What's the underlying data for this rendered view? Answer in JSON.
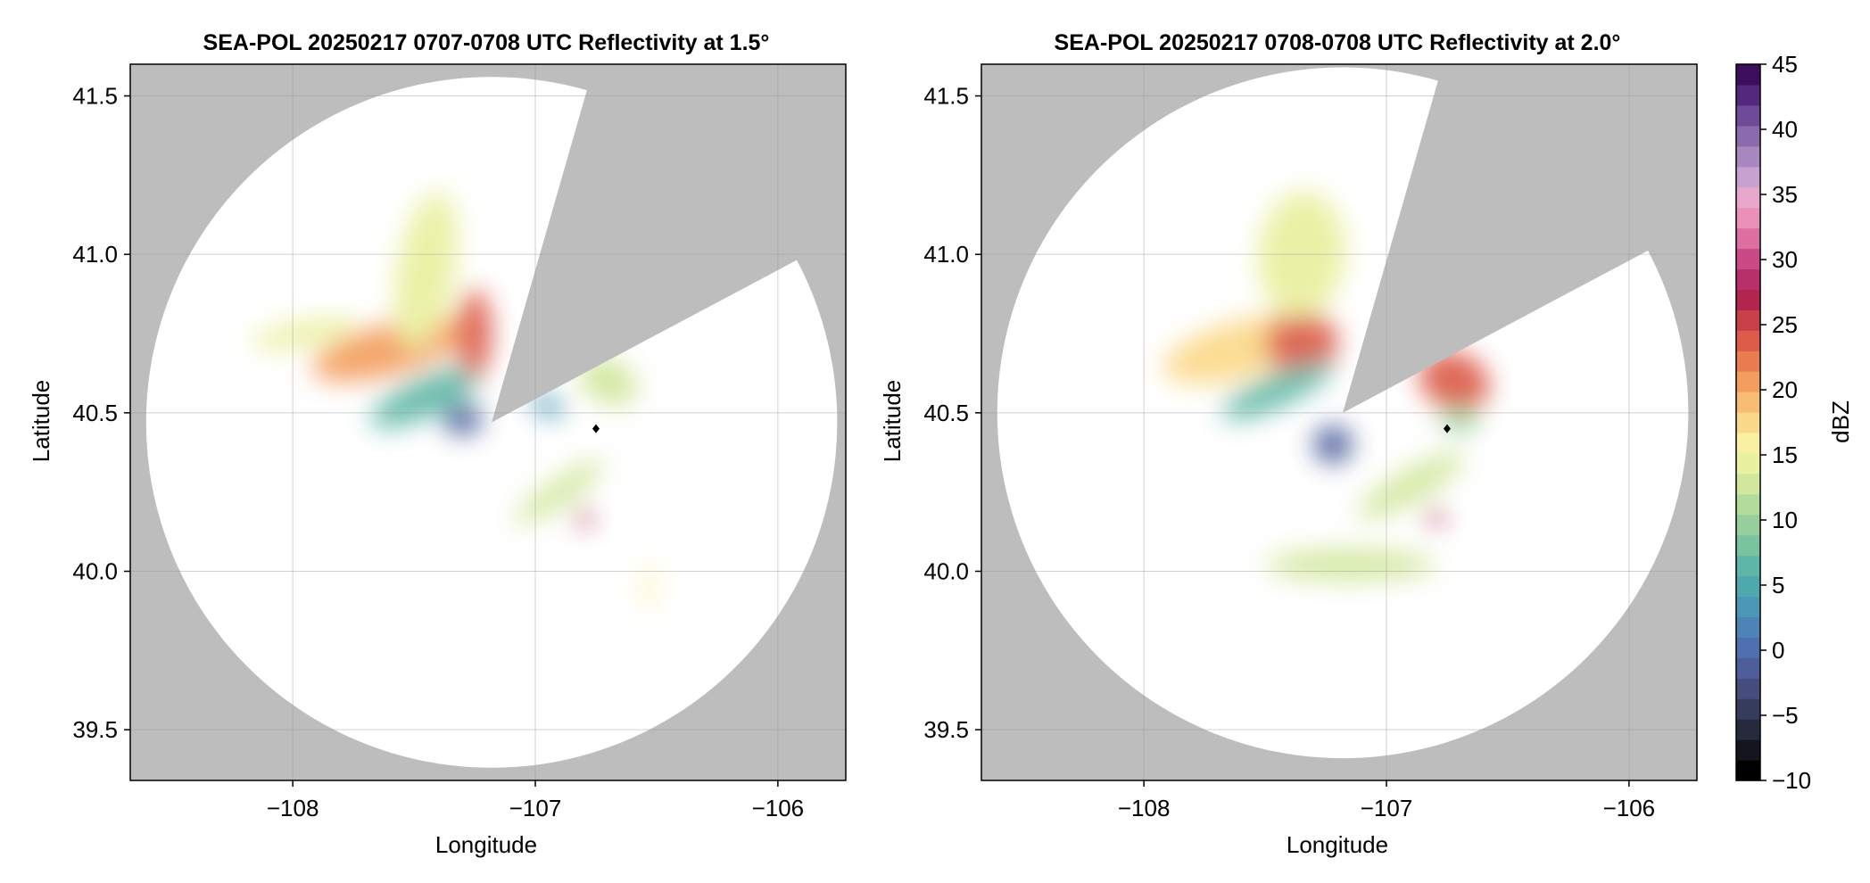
{
  "colors": {
    "background_mask": "#bdbdbd",
    "coverage_fill": "#ffffff",
    "grid": "#9a9a9a",
    "marker": "#000000"
  },
  "colorbar": {
    "label": "dBZ",
    "range": [
      -10,
      45
    ],
    "ticks": [
      45,
      40,
      35,
      30,
      25,
      20,
      15,
      10,
      5,
      0,
      -5,
      -10
    ],
    "tick_labels": [
      "45",
      "40",
      "35",
      "30",
      "25",
      "20",
      "15",
      "10",
      "5",
      "0",
      "−5",
      "−10"
    ],
    "colormap": [
      "#000000",
      "#151520",
      "#262a3d",
      "#363d5c",
      "#444d7c",
      "#4e5e9a",
      "#4f6fb0",
      "#4e83b8",
      "#4a97b6",
      "#4fa8ad",
      "#5eb7a6",
      "#79c39e",
      "#97cf9c",
      "#b3dc9b",
      "#d0e79d",
      "#e9f09f",
      "#f9f0a3",
      "#fbd98a",
      "#f8bd72",
      "#f39e5f",
      "#e97d51",
      "#dc5c4a",
      "#c9404a",
      "#b3254f",
      "#b7306a",
      "#c94a84",
      "#dd6fa0",
      "#eb90b7",
      "#e8a8cc",
      "#c7a1cf",
      "#a987c0",
      "#8c6aae",
      "#6f4a98",
      "#54287d",
      "#3c0f5e"
    ]
  },
  "chart_data": [
    {
      "type": "heatmap",
      "title": "SEA-POL 20250217 0707-0708 UTC Reflectivity at 1.5°",
      "xlabel": "Longitude",
      "ylabel": "Latitude",
      "xlim": [
        -108.67,
        -105.72
      ],
      "ylim": [
        39.34,
        41.6
      ],
      "xticks": [
        -108,
        -107,
        -106
      ],
      "xtick_labels": [
        "−108",
        "−107",
        "−106"
      ],
      "yticks": [
        39.5,
        40.0,
        40.5,
        41.0,
        41.5
      ],
      "ytick_labels": [
        "39.5",
        "40.0",
        "40.5",
        "41.0",
        "41.5"
      ],
      "grid": true,
      "radar_center": {
        "lon": -107.18,
        "lat": 40.47
      },
      "coverage_radius_deg_lat": 1.09,
      "blocked_sectors_deg": [
        [
          16,
          62
        ]
      ],
      "marker": {
        "lon": -106.75,
        "lat": 40.45,
        "shape": "diamond"
      },
      "echo_regions": [
        {
          "lon": -107.6,
          "lat": 40.7,
          "slon": 0.33,
          "slat": 0.08,
          "dbz": 20,
          "angle": -15
        },
        {
          "lon": -107.45,
          "lat": 40.55,
          "slon": 0.25,
          "slat": 0.06,
          "dbz": 6,
          "angle": -25
        },
        {
          "lon": -107.45,
          "lat": 40.95,
          "slon": 0.12,
          "slat": 0.25,
          "dbz": 15,
          "angle": 10
        },
        {
          "lon": -107.25,
          "lat": 40.75,
          "slon": 0.07,
          "slat": 0.14,
          "dbz": 24,
          "angle": 0
        },
        {
          "lon": -107.95,
          "lat": 40.75,
          "slon": 0.22,
          "slat": 0.04,
          "dbz": 14,
          "angle": -10
        },
        {
          "lon": -107.3,
          "lat": 40.48,
          "slon": 0.08,
          "slat": 0.05,
          "dbz": -2,
          "angle": 0
        },
        {
          "lon": -106.9,
          "lat": 40.25,
          "slon": 0.22,
          "slat": 0.04,
          "dbz": 12,
          "angle": -35
        },
        {
          "lon": -106.8,
          "lat": 40.17,
          "slon": 0.03,
          "slat": 0.03,
          "dbz": 27,
          "angle": 0
        },
        {
          "lon": -106.7,
          "lat": 40.6,
          "slon": 0.13,
          "slat": 0.07,
          "dbz": 13,
          "angle": 30
        },
        {
          "lon": -106.95,
          "lat": 40.52,
          "slon": 0.07,
          "slat": 0.03,
          "dbz": 4,
          "angle": 20
        },
        {
          "lon": -106.53,
          "lat": 39.95,
          "slon": 0.02,
          "slat": 0.07,
          "dbz": 16,
          "angle": 0
        }
      ]
    },
    {
      "type": "heatmap",
      "title": "SEA-POL 20250217 0708-0708 UTC Reflectivity at 2.0°",
      "xlabel": "Longitude",
      "ylabel": "Latitude",
      "xlim": [
        -108.67,
        -105.72
      ],
      "ylim": [
        39.34,
        41.6
      ],
      "xticks": [
        -108,
        -107,
        -106
      ],
      "xtick_labels": [
        "−108",
        "−107",
        "−106"
      ],
      "yticks": [
        39.5,
        40.0,
        40.5,
        41.0,
        41.5
      ],
      "ytick_labels": [
        "39.5",
        "40.0",
        "40.5",
        "41.0",
        "41.5"
      ],
      "grid": true,
      "radar_center": {
        "lon": -107.18,
        "lat": 40.5
      },
      "coverage_radius_deg_lat": 1.09,
      "blocked_sectors_deg": [
        [
          16,
          62
        ]
      ],
      "marker": {
        "lon": -106.75,
        "lat": 40.45,
        "shape": "diamond"
      },
      "echo_regions": [
        {
          "lon": -107.6,
          "lat": 40.7,
          "slon": 0.33,
          "slat": 0.09,
          "dbz": 18,
          "angle": -15
        },
        {
          "lon": -107.35,
          "lat": 40.72,
          "slon": 0.15,
          "slat": 0.1,
          "dbz": 24,
          "angle": 0
        },
        {
          "lon": -107.45,
          "lat": 40.57,
          "slon": 0.25,
          "slat": 0.05,
          "dbz": 7,
          "angle": -25
        },
        {
          "lon": -107.35,
          "lat": 41.0,
          "slon": 0.18,
          "slat": 0.2,
          "dbz": 15,
          "angle": 5
        },
        {
          "lon": -106.72,
          "lat": 40.6,
          "slon": 0.15,
          "slat": 0.09,
          "dbz": 24,
          "angle": 25
        },
        {
          "lon": -107.22,
          "lat": 40.4,
          "slon": 0.08,
          "slat": 0.06,
          "dbz": -2,
          "angle": 0
        },
        {
          "lon": -106.9,
          "lat": 40.27,
          "slon": 0.25,
          "slat": 0.05,
          "dbz": 12,
          "angle": -30
        },
        {
          "lon": -106.8,
          "lat": 40.17,
          "slon": 0.03,
          "slat": 0.03,
          "dbz": 27,
          "angle": 0
        },
        {
          "lon": -107.15,
          "lat": 40.02,
          "slon": 0.35,
          "slat": 0.05,
          "dbz": 13,
          "angle": 0
        },
        {
          "lon": -106.7,
          "lat": 40.48,
          "slon": 0.08,
          "slat": 0.04,
          "dbz": 10,
          "angle": 0
        }
      ]
    }
  ]
}
